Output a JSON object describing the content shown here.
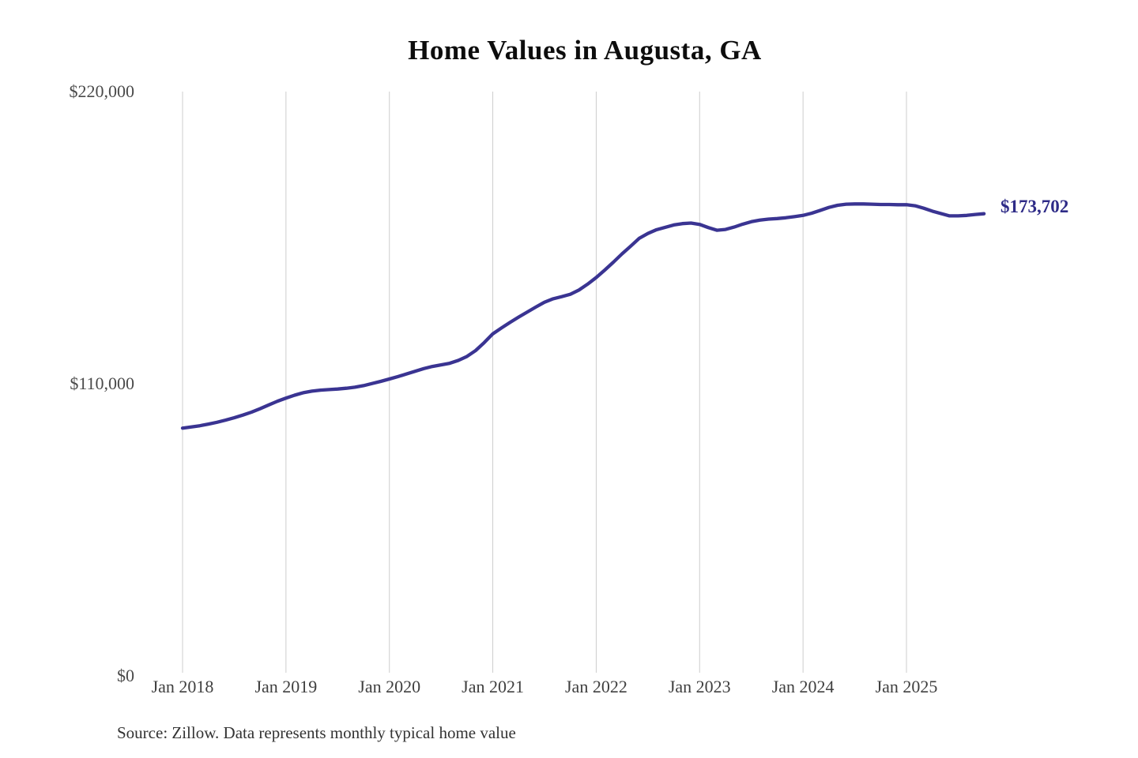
{
  "page": {
    "background": "#ffffff"
  },
  "chart": {
    "title": "Home Values in Augusta, GA",
    "latest_value_label": "$173,702",
    "source": "Source: Zillow. Data represents monthly typical home value"
  },
  "chart_data": {
    "type": "line",
    "title": "Home Values in Augusta, GA",
    "series_name": "Monthly typical home value",
    "x_start": "2018-01",
    "x_end": "2025-10",
    "x_frequency": "monthly",
    "values": [
      93000,
      93400,
      93900,
      94500,
      95200,
      96000,
      96900,
      97900,
      99000,
      100300,
      101700,
      103100,
      104300,
      105400,
      106300,
      106900,
      107300,
      107500,
      107700,
      108000,
      108400,
      109000,
      109800,
      110600,
      111500,
      112400,
      113400,
      114400,
      115400,
      116200,
      116800,
      117400,
      118500,
      120000,
      122200,
      125200,
      128500,
      130700,
      132800,
      134800,
      136700,
      138600,
      140400,
      141700,
      142500,
      143400,
      145000,
      147200,
      149700,
      152500,
      155500,
      158600,
      161500,
      164500,
      166300,
      167700,
      168600,
      169500,
      170000,
      170200,
      169700,
      168500,
      167500,
      167800,
      168700,
      169800,
      170700,
      171300,
      171700,
      171900,
      172200,
      172600,
      173100,
      173900,
      175000,
      176100,
      176900,
      177300,
      177400,
      177400,
      177300,
      177200,
      177200,
      177100,
      177100,
      176700,
      175800,
      174700,
      173800,
      172900,
      172900,
      173100,
      173450,
      173702
    ],
    "latest_value": 173702,
    "latest_value_label": "$173,702",
    "ylim": [
      0,
      220000
    ],
    "y_ticks": [
      {
        "value": 0,
        "label": "$0"
      },
      {
        "value": 110000,
        "label": "$110,000"
      },
      {
        "value": 220000,
        "label": "$220,000"
      }
    ],
    "x_ticks": [
      {
        "month_index": 0,
        "label": "Jan 2018"
      },
      {
        "month_index": 12,
        "label": "Jan 2019"
      },
      {
        "month_index": 24,
        "label": "Jan 2020"
      },
      {
        "month_index": 36,
        "label": "Jan 2021"
      },
      {
        "month_index": 48,
        "label": "Jan 2022"
      },
      {
        "month_index": 60,
        "label": "Jan 2023"
      },
      {
        "month_index": 72,
        "label": "Jan 2024"
      },
      {
        "month_index": 84,
        "label": "Jan 2025"
      }
    ],
    "grid": "vertical-only",
    "legend": "none",
    "colors": {
      "line": "#3a3492",
      "annotation": "#2e2b87",
      "gridline": "#cdcdcd",
      "tick_text": "#454545"
    }
  }
}
